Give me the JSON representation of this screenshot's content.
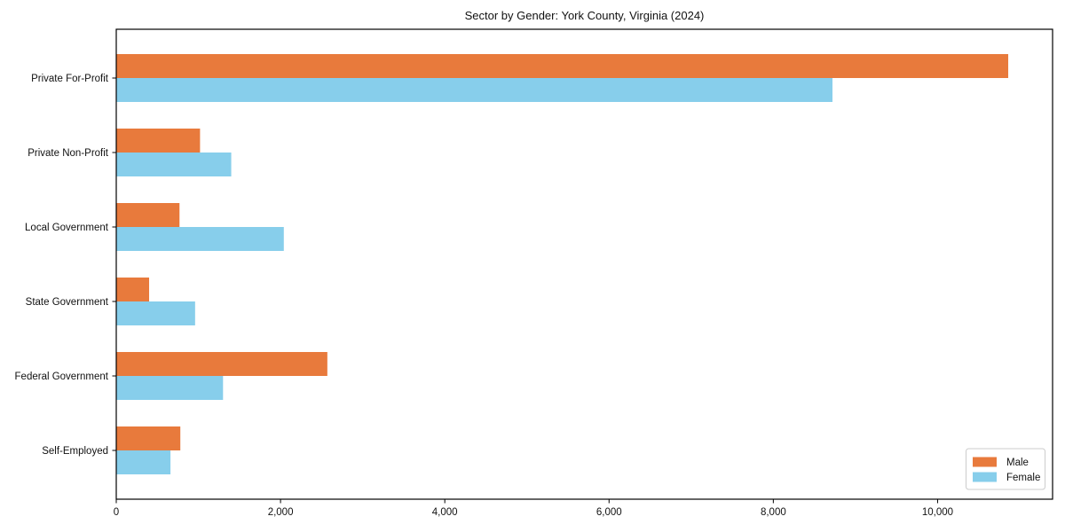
{
  "figure": {
    "background": "#ffffff"
  },
  "chart_data": {
    "type": "bar",
    "orientation": "horizontal",
    "title": "Sector by Gender: York County, Virginia (2024)",
    "categories": [
      "Private For-Profit",
      "Private Non-Profit",
      "Local Government",
      "State Government",
      "Federal Government",
      "Self-Employed"
    ],
    "series": [
      {
        "name": "Male",
        "color": "#e87a3c",
        "values": [
          10860,
          1020,
          770,
          400,
          2570,
          780
        ]
      },
      {
        "name": "Female",
        "color": "#87ceeb",
        "values": [
          8720,
          1400,
          2040,
          960,
          1300,
          660
        ]
      }
    ],
    "xlabel": "",
    "ylabel": "",
    "xlim": [
      0,
      11400
    ],
    "x_ticks": [
      0,
      2000,
      4000,
      6000,
      8000,
      10000
    ],
    "x_tick_labels": [
      "0",
      "2,000",
      "4,000",
      "6,000",
      "8,000",
      "10,000"
    ],
    "grid": false,
    "legend": {
      "position": "lower right",
      "entries": [
        "Male",
        "Female"
      ]
    },
    "frame_color": "#000000",
    "legend_border_color": "#cccccc"
  }
}
